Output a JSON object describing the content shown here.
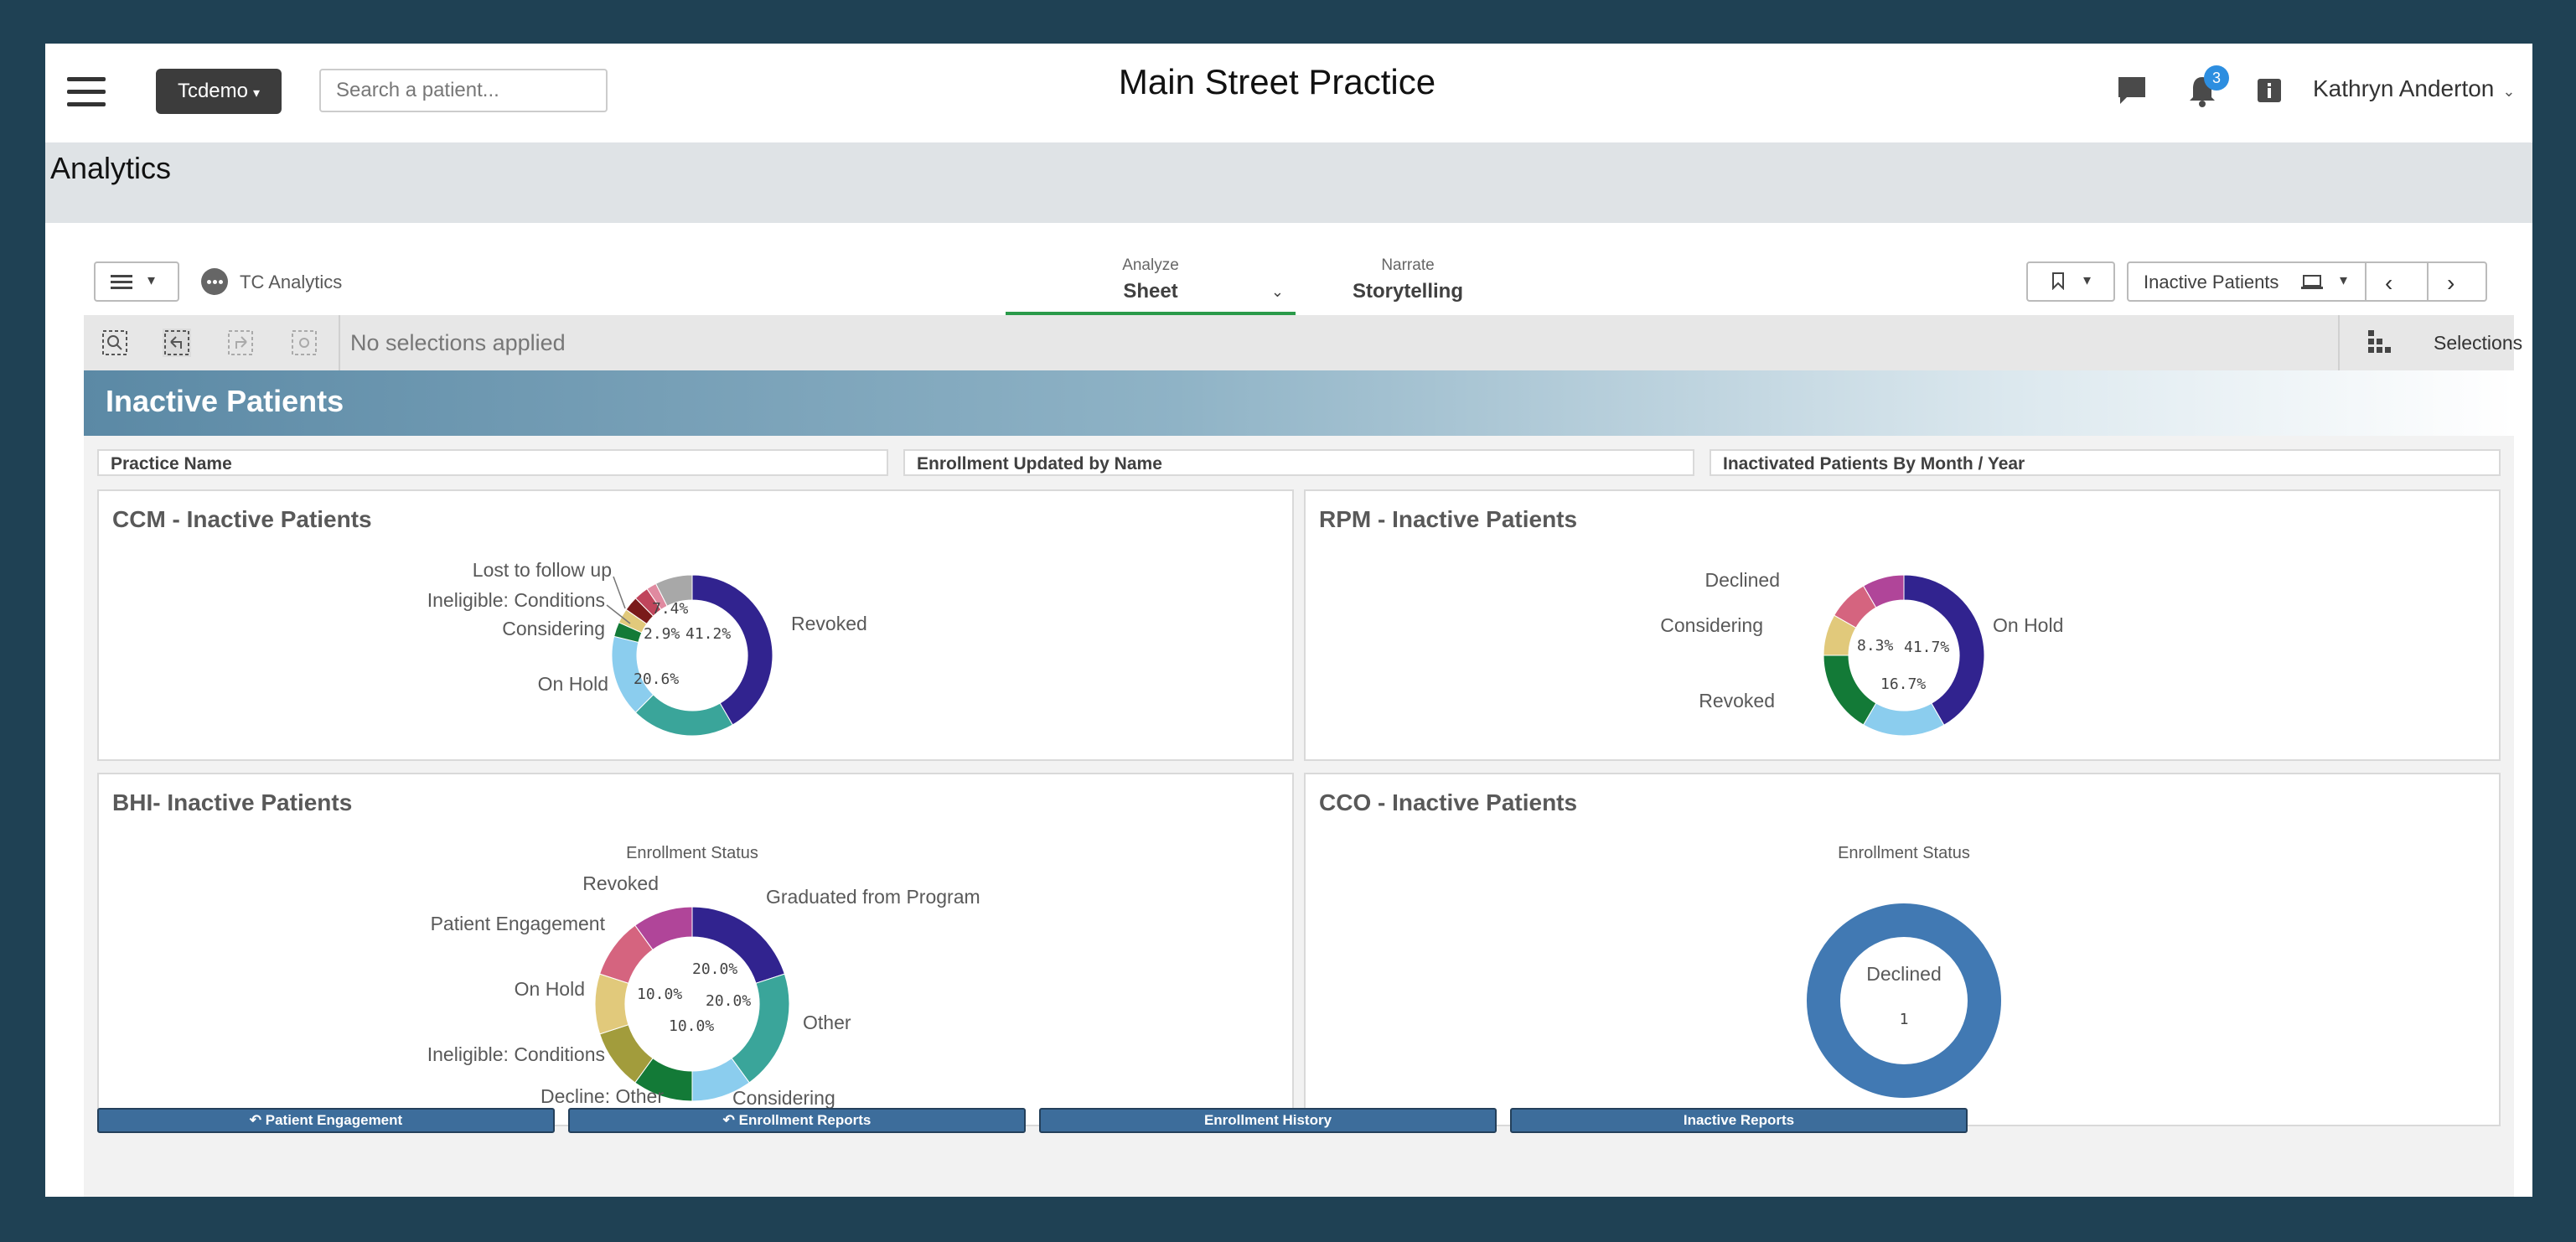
{
  "topbar": {
    "org_button": "Tcdemo",
    "search_placeholder": "Search a patient...",
    "practice_title": "Main Street Practice",
    "notification_count": "3",
    "user_name": "Kathryn Anderton"
  },
  "band": {
    "title": "Analytics"
  },
  "qlik": {
    "app_name": "TC Analytics",
    "tabs": [
      {
        "small": "Analyze",
        "big": "Sheet"
      },
      {
        "small": "Narrate",
        "big": "Storytelling"
      }
    ],
    "sheet_name": "Inactive Patients",
    "selections_text": "No selections applied",
    "selections_label": "Selections"
  },
  "sheet": {
    "title": "Inactive Patients",
    "filters": [
      "Practice Name",
      "Enrollment Updated by Name",
      "Inactivated Patients By Month / Year"
    ],
    "nav_buttons": [
      "Patient Engagement",
      "Enrollment Reports",
      "Enrollment History",
      "Inactive Reports"
    ]
  },
  "colors": {
    "purple": "#31238f",
    "teal": "#3aa59a",
    "light_blue": "#8bcdee",
    "green": "#137a37",
    "sand": "#e1c97b",
    "rose": "#d5647f",
    "magenta": "#b04599",
    "olive": "#a29c3c",
    "steel_blue": "#4179b3",
    "gray": "#a8a8a8"
  },
  "chart_data": [
    {
      "type": "pie",
      "title": "CCM - Inactive Patients",
      "slices": [
        {
          "label": "Revoked",
          "value": 41.2,
          "color": "#31238f"
        },
        {
          "label": "",
          "value": 20.6,
          "color": "#3aa59a"
        },
        {
          "label": "On Hold",
          "value": 16.2,
          "color": "#8bcdee"
        },
        {
          "label": "",
          "value": 2.9,
          "color": "#137a37"
        },
        {
          "label": "Considering",
          "value": 2.9,
          "color": "#e1c97b"
        },
        {
          "label": "Ineligible: Conditions",
          "value": 2.9,
          "color": "#7a1a1a"
        },
        {
          "label": "Lost to follow up",
          "value": 2.9,
          "color": "#c0455c"
        },
        {
          "label": "",
          "value": 2.0,
          "color": "#e08aa0"
        },
        {
          "label": "",
          "value": 7.4,
          "color": "#a8a8a8"
        }
      ],
      "data_labels": [
        "41.2%",
        "20.6%",
        "2.9%",
        "7.4%"
      ]
    },
    {
      "type": "pie",
      "title": "RPM - Inactive Patients",
      "slices": [
        {
          "label": "On Hold",
          "value": 41.7,
          "color": "#31238f"
        },
        {
          "label": "",
          "value": 16.7,
          "color": "#8bcdee"
        },
        {
          "label": "Revoked",
          "value": 16.6,
          "color": "#137a37"
        },
        {
          "label": "Considering",
          "value": 8.3,
          "color": "#e1c97b"
        },
        {
          "label": "Declined",
          "value": 8.3,
          "color": "#d5647f"
        },
        {
          "label": "",
          "value": 8.4,
          "color": "#b04599"
        }
      ],
      "data_labels": [
        "41.7%",
        "16.7%",
        "8.3%"
      ]
    },
    {
      "type": "pie",
      "title": "BHI- Inactive Patients",
      "subtitle": "Enrollment Status",
      "slices": [
        {
          "label": "Graduated from Program",
          "value": 20.0,
          "color": "#31238f"
        },
        {
          "label": "Other",
          "value": 20.0,
          "color": "#3aa59a"
        },
        {
          "label": "Considering",
          "value": 10.0,
          "color": "#8bcdee"
        },
        {
          "label": "Decline: Other",
          "value": 10.0,
          "color": "#137a37"
        },
        {
          "label": "Ineligible: Conditions",
          "value": 10.0,
          "color": "#a29c3c"
        },
        {
          "label": "On Hold",
          "value": 10.0,
          "color": "#e1c97b"
        },
        {
          "label": "Patient Engagement",
          "value": 10.0,
          "color": "#d5647f"
        },
        {
          "label": "Revoked",
          "value": 10.0,
          "color": "#b04599"
        }
      ],
      "data_labels": [
        "20.0%",
        "20.0%",
        "10.0%",
        "10.0%"
      ]
    },
    {
      "type": "pie",
      "title": "CCO - Inactive Patients",
      "subtitle": "Enrollment Status",
      "slices": [
        {
          "label": "Declined",
          "value": 1,
          "color": "#4179b3"
        }
      ],
      "center_label": "Declined",
      "center_value": "1"
    }
  ]
}
